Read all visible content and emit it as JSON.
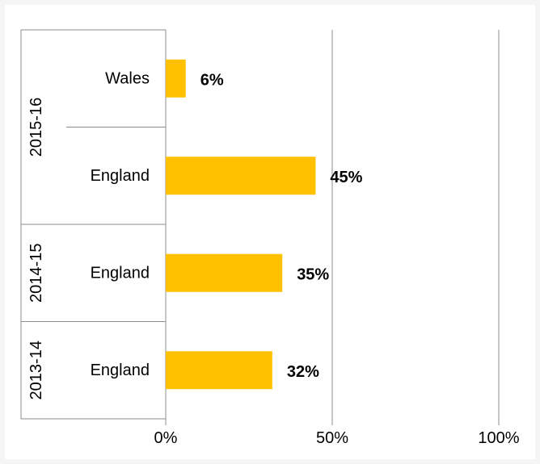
{
  "chart_data": {
    "type": "bar",
    "orientation": "horizontal",
    "groups": [
      {
        "label": "2015-16",
        "categories": [
          "Wales",
          "England"
        ]
      },
      {
        "label": "2014-15",
        "categories": [
          "England"
        ]
      },
      {
        "label": "2013-14",
        "categories": [
          "England"
        ]
      }
    ],
    "bars": [
      {
        "group": "2015-16",
        "category": "Wales",
        "value": 6,
        "label": "6%"
      },
      {
        "group": "2015-16",
        "category": "England",
        "value": 45,
        "label": "45%"
      },
      {
        "group": "2014-15",
        "category": "England",
        "value": 35,
        "label": "35%"
      },
      {
        "group": "2013-14",
        "category": "England",
        "value": 32,
        "label": "32%"
      }
    ],
    "xlim": [
      0,
      100
    ],
    "xticks": [
      0,
      50,
      100
    ],
    "xtick_labels": [
      "0%",
      "50%",
      "100%"
    ],
    "vertical_gridlines": true,
    "bar_color": "#FFC000",
    "title": "",
    "xlabel": "",
    "ylabel": ""
  }
}
